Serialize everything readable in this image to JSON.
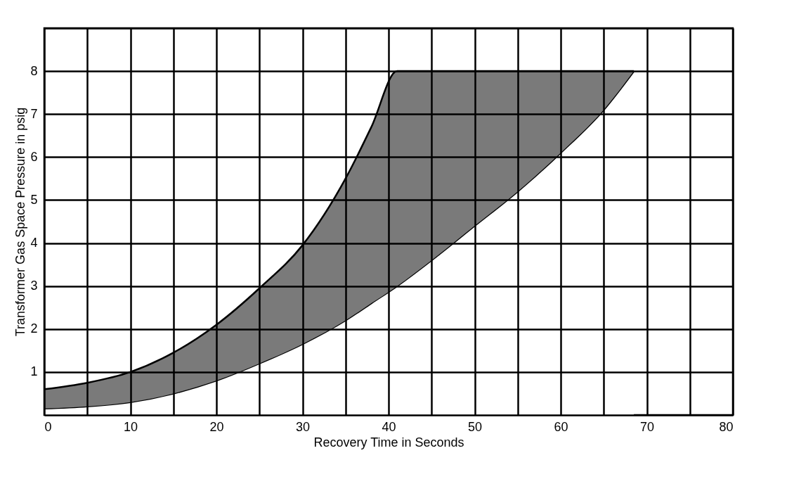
{
  "chart_data": {
    "type": "area",
    "stacked": true,
    "xlabel": "Recovery Time in Seconds",
    "ylabel": "Transformer Gas Space Pressure in psig",
    "xlim": [
      0,
      80
    ],
    "ylim": [
      0,
      9
    ],
    "xticks": [
      0,
      {
        "value": 5,
        "label": null
      },
      10,
      {
        "value": 15,
        "label": null
      },
      20,
      {
        "value": 25,
        "label": null
      },
      30,
      {
        "value": 35,
        "label": null
      },
      40,
      {
        "value": 45,
        "label": null
      },
      50,
      {
        "value": 55,
        "label": null
      },
      60,
      {
        "value": 65,
        "label": null
      },
      70,
      {
        "value": 75,
        "label": null
      },
      80
    ],
    "yticks": [
      {
        "value": 0,
        "label": null
      },
      1,
      2,
      3,
      4,
      5,
      6,
      7,
      8,
      {
        "value": 9,
        "label": null
      }
    ],
    "grid": true,
    "x": [
      0,
      5,
      10,
      15,
      20,
      25,
      30,
      35,
      38,
      41,
      45,
      50,
      55,
      60,
      65,
      68.5
    ],
    "series": [
      {
        "color": "#ffffff",
        "values": [
          0.15,
          0.2,
          0.3,
          0.5,
          0.8,
          1.2,
          1.65,
          2.2,
          2.6,
          3.0,
          3.6,
          4.4,
          5.2,
          6.1,
          7.1,
          8
        ]
      },
      {
        "color": "#7a7a7a",
        "values": [
          0.45,
          0.55,
          0.7,
          0.95,
          1.3,
          1.75,
          2.3,
          3.3,
          4.1,
          5,
          4.4,
          3.6,
          2.8,
          1.9,
          0.9,
          0
        ]
      }
    ]
  }
}
